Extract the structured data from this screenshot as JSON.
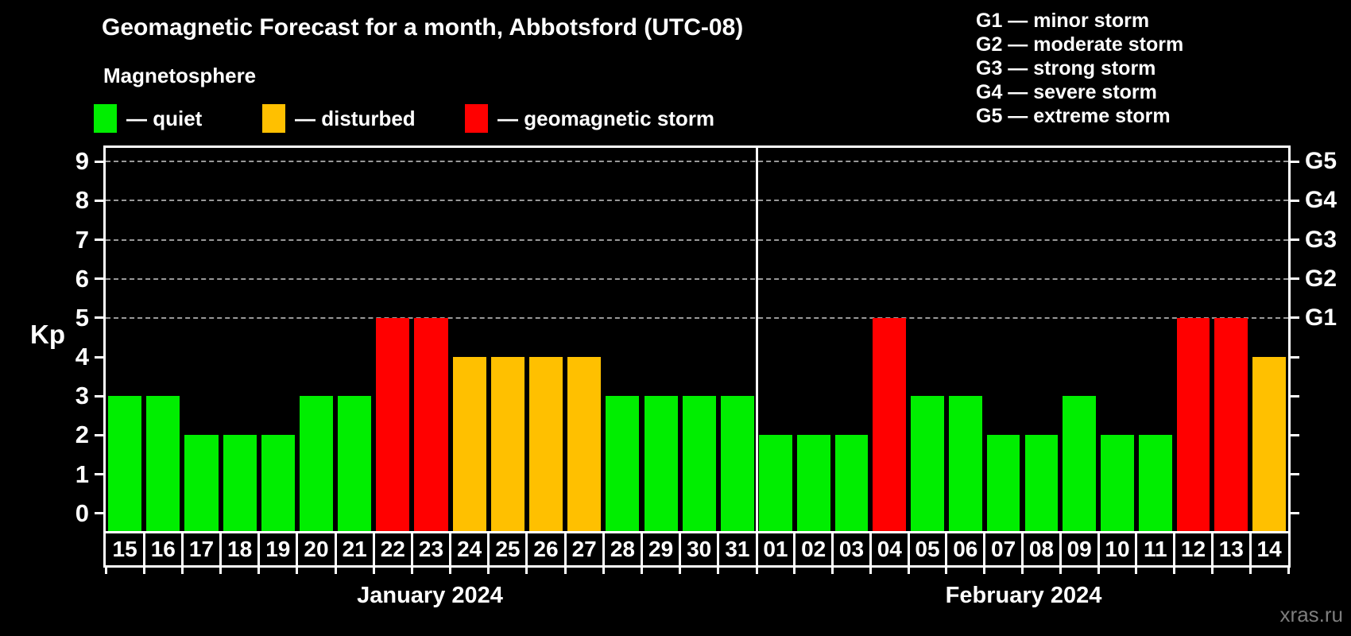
{
  "title": "Geomagnetic Forecast for a month, Abbotsford (UTC-08)",
  "subtitle": "Magnetosphere",
  "watermark": "xras.ru",
  "bar_legend": {
    "separator": "—",
    "items": [
      {
        "name": "quiet",
        "color": "#00ee00"
      },
      {
        "name": "disturbed",
        "color": "#ffc000"
      },
      {
        "name": "geomagnetic storm",
        "color": "#ff0000"
      }
    ]
  },
  "g_legend": {
    "separator": "—",
    "items": [
      {
        "grade": "G1",
        "desc": "minor storm"
      },
      {
        "grade": "G2",
        "desc": "moderate storm"
      },
      {
        "grade": "G3",
        "desc": "strong storm"
      },
      {
        "grade": "G4",
        "desc": "severe storm"
      },
      {
        "grade": "G5",
        "desc": "extreme storm"
      }
    ]
  },
  "chart_data": {
    "type": "bar",
    "title": "Geomagnetic Forecast for a month, Abbotsford (UTC-08)",
    "ylabel": "Kp",
    "ylim": [
      0,
      9
    ],
    "y_ticks": [
      0,
      1,
      2,
      3,
      4,
      5,
      6,
      7,
      8,
      9
    ],
    "gridlines_at_kp": [
      5,
      6,
      7,
      8,
      9
    ],
    "grid": "dashed horizontal at storm levels only",
    "legend_position": "top-left",
    "right_axis": {
      "labels": [
        "G1",
        "G2",
        "G3",
        "G4",
        "G5"
      ],
      "at_kp": [
        5,
        6,
        7,
        8,
        9
      ]
    },
    "colors": {
      "quiet": "#00ee00",
      "disturbed": "#ffc000",
      "storm": "#ff0000"
    },
    "color_rules": {
      "quiet_kp_max": 3,
      "disturbed_kp": 4,
      "storm_kp_min": 5
    },
    "months": [
      {
        "label": "January 2024",
        "days": [
          "15",
          "16",
          "17",
          "18",
          "19",
          "20",
          "21",
          "22",
          "23",
          "24",
          "25",
          "26",
          "27",
          "28",
          "29",
          "30",
          "31"
        ],
        "kp": [
          3,
          3,
          2,
          2,
          2,
          3,
          3,
          5,
          5,
          4,
          4,
          4,
          4,
          3,
          3,
          3,
          3
        ]
      },
      {
        "label": "February 2024",
        "days": [
          "01",
          "02",
          "03",
          "04",
          "05",
          "06",
          "07",
          "08",
          "09",
          "10",
          "11",
          "12",
          "13",
          "14"
        ],
        "kp": [
          2,
          2,
          2,
          5,
          3,
          3,
          2,
          2,
          3,
          2,
          2,
          5,
          5,
          4
        ]
      }
    ]
  }
}
